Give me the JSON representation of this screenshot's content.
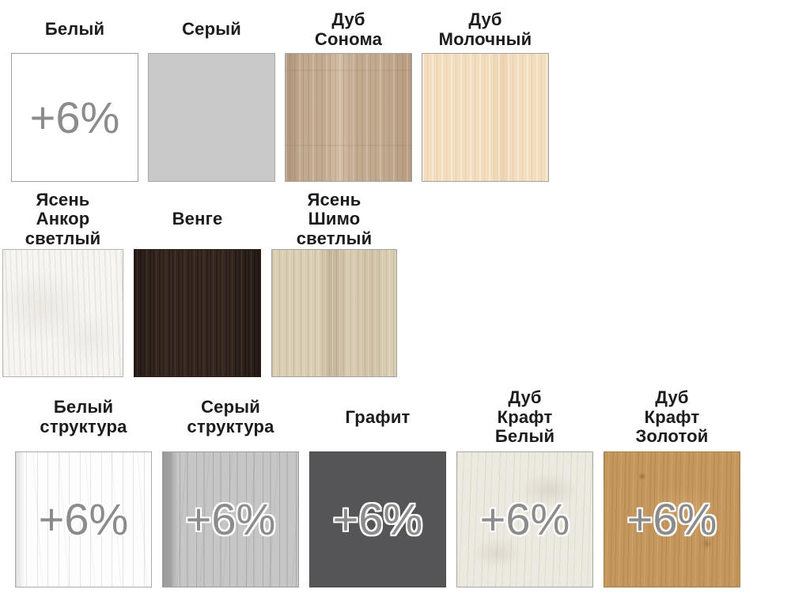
{
  "surcharge_badge": "+6%",
  "colors": {
    "background": "#ffffff",
    "label_text": "#1c1c1c",
    "surcharge_text": "#8c8c8c",
    "surcharge_outline": "#ffffff",
    "swatch_border": "#a3a3a3",
    "white": "#ffffff",
    "gray": "#c9c9c9",
    "oak_sonoma": "#c2aa90",
    "oak_milk": "#f2ddbe",
    "ash_anchor_light": "#f6f5f2",
    "wenge": "#362821",
    "ash_shimo_light": "#d9cdb3",
    "white_structure": "#fdfdfd",
    "gray_structure": "#c6c6c6",
    "graphite": "#555557",
    "oak_kraft_white": "#ece9e1",
    "oak_kraft_gold": "#c4975e"
  },
  "rows": [
    {
      "items": [
        {
          "label": "Белый",
          "surcharge": "+6%"
        },
        {
          "label": "Серый"
        },
        {
          "label": "Дуб\nСонома"
        },
        {
          "label": "Дуб\nМолочный"
        }
      ]
    },
    {
      "items": [
        {
          "label": "Ясень\nАнкор\nсветлый"
        },
        {
          "label": "Венге"
        },
        {
          "label": "Ясень\nШимо\nсветлый"
        }
      ]
    },
    {
      "items": [
        {
          "label": "Белый\nструктура",
          "surcharge": "+6%"
        },
        {
          "label": "Серый\nструктура",
          "surcharge": "+6%"
        },
        {
          "label": "Графит",
          "surcharge": "+6%"
        },
        {
          "label": "Дуб\nКрафт\nБелый",
          "surcharge": "+6%"
        },
        {
          "label": "Дуб\nКрафт\nЗолотой",
          "surcharge": "+6%"
        }
      ]
    }
  ]
}
